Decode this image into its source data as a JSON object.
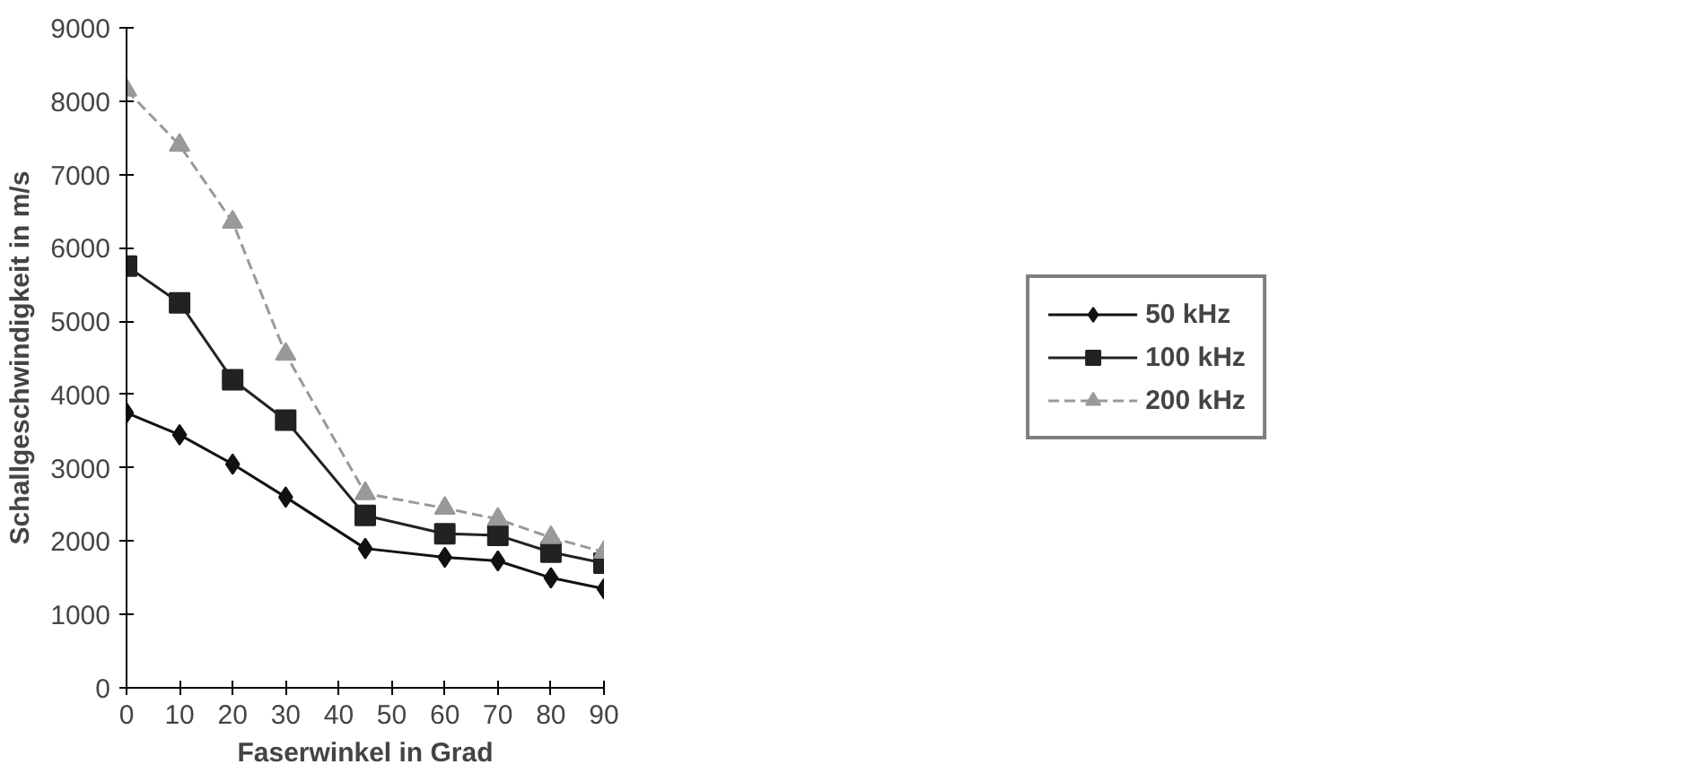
{
  "chart_data": {
    "type": "line",
    "xlabel": "Faserwinkel in Grad",
    "ylabel": "Schallgeschwindigkeit in m/s",
    "x": [
      0,
      10,
      20,
      30,
      45,
      60,
      70,
      80,
      90
    ],
    "series": [
      {
        "name": "50 kHz",
        "color": "#111111",
        "marker": "diamond",
        "line_style": "solid",
        "values": [
          3750,
          3450,
          3050,
          2600,
          1900,
          1780,
          1730,
          1500,
          1350
        ]
      },
      {
        "name": "100 kHz",
        "color": "#222222",
        "marker": "square",
        "line_style": "solid",
        "values": [
          5750,
          5250,
          4200,
          3650,
          2350,
          2100,
          2080,
          1850,
          1700
        ]
      },
      {
        "name": "200 kHz",
        "color": "#999999",
        "marker": "triangle",
        "line_style": "dashed",
        "values": [
          8150,
          7400,
          6350,
          4550,
          2650,
          2450,
          2300,
          2050,
          1850
        ]
      }
    ],
    "xlim": [
      0,
      90
    ],
    "xticks": [
      0,
      10,
      20,
      30,
      40,
      50,
      60,
      70,
      80,
      90
    ],
    "ylim": [
      0,
      9000
    ],
    "yticks": [
      0,
      1000,
      2000,
      3000,
      4000,
      5000,
      6000,
      7000,
      8000,
      9000
    ],
    "grid": false,
    "legend": "right"
  }
}
